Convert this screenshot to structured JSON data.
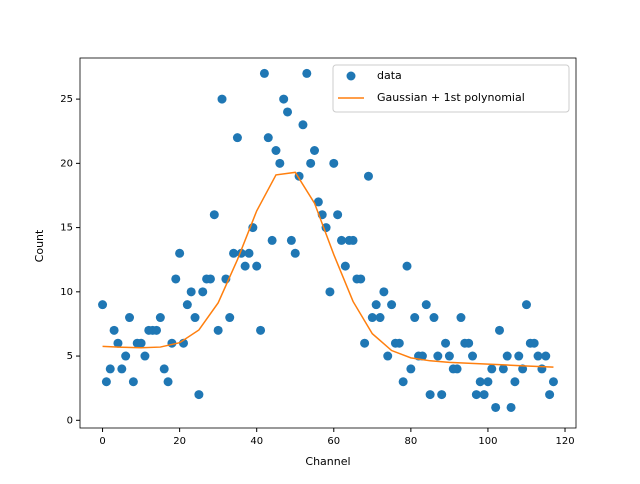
{
  "chart_data": {
    "type": "scatter-fit",
    "xlabel": "Channel",
    "ylabel": "Count",
    "xlim": [
      -5.85,
      122.85
    ],
    "ylim": [
      -0.6,
      28.2
    ],
    "xticks": [
      0,
      20,
      40,
      60,
      80,
      100,
      120
    ],
    "yticks": [
      0,
      5,
      10,
      15,
      20,
      25
    ],
    "legend": "upper right",
    "series": [
      {
        "name": "data",
        "kind": "scatter",
        "color": "#1f77b4",
        "x": [
          0,
          1,
          2,
          3,
          4,
          5,
          6,
          7,
          8,
          9,
          10,
          11,
          12,
          13,
          14,
          15,
          16,
          17,
          18,
          19,
          20,
          21,
          22,
          23,
          24,
          25,
          26,
          27,
          28,
          29,
          30,
          31,
          32,
          33,
          34,
          35,
          36,
          37,
          38,
          39,
          40,
          41,
          42,
          43,
          44,
          45,
          46,
          47,
          48,
          49,
          50,
          51,
          52,
          53,
          54,
          55,
          56,
          57,
          58,
          59,
          60,
          61,
          62,
          63,
          64,
          65,
          66,
          67,
          68,
          69,
          70,
          71,
          72,
          73,
          74,
          75,
          76,
          77,
          78,
          79,
          80,
          81,
          82,
          83,
          84,
          85,
          86,
          87,
          88,
          89,
          90,
          91,
          92,
          93,
          94,
          95,
          96,
          97,
          98,
          99,
          100,
          101,
          102,
          103,
          104,
          105,
          106,
          107,
          108,
          109,
          110,
          111,
          112,
          113,
          114,
          115,
          116,
          117
        ],
        "values": [
          9,
          3,
          4,
          7,
          6,
          4,
          5,
          8,
          3,
          6,
          6,
          5,
          7,
          7,
          7,
          8,
          4,
          3,
          6,
          11,
          13,
          6,
          9,
          10,
          8,
          2,
          10,
          11,
          11,
          16,
          7,
          25,
          11,
          8,
          13,
          22,
          13,
          12,
          13,
          15,
          12,
          7,
          27,
          22,
          14,
          21,
          20,
          25,
          24,
          14,
          13,
          19,
          23,
          27,
          20,
          21,
          17,
          16,
          15,
          10,
          20,
          16,
          14,
          12,
          14,
          14,
          11,
          11,
          6,
          19,
          8,
          9,
          8,
          10,
          5,
          9,
          6,
          6,
          3,
          12,
          4,
          8,
          5,
          5,
          9,
          2,
          8,
          5,
          2,
          6,
          5,
          4,
          4,
          8,
          6,
          6,
          5,
          2,
          3,
          2,
          3,
          4,
          1,
          7,
          4,
          5,
          1,
          3,
          5,
          4,
          9,
          6,
          6,
          5,
          4,
          5,
          2,
          3
        ]
      },
      {
        "name": "Gaussian + 1st polynomial",
        "kind": "line",
        "color": "#ff7f0e",
        "x": [
          0,
          5,
          10,
          15,
          20,
          25,
          30,
          35,
          40,
          45,
          50,
          55,
          60,
          65,
          70,
          75,
          80,
          85,
          90,
          95,
          100,
          105,
          110,
          117
        ],
        "values": [
          5.75,
          5.69,
          5.65,
          5.7,
          6.04,
          7.03,
          9.14,
          12.5,
          16.3,
          19.1,
          19.3,
          16.9,
          12.9,
          9.25,
          6.74,
          5.43,
          4.86,
          4.63,
          4.51,
          4.44,
          4.37,
          4.3,
          4.23,
          4.14
        ]
      }
    ]
  }
}
